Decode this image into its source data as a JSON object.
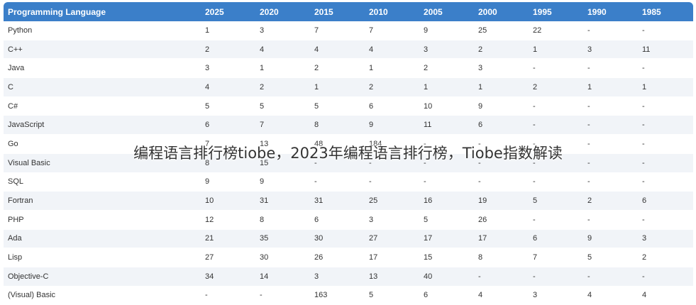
{
  "table": {
    "headers": [
      "Programming Language",
      "2025",
      "2020",
      "2015",
      "2010",
      "2005",
      "2000",
      "1995",
      "1990",
      "1985"
    ],
    "rows": [
      [
        "Python",
        "1",
        "3",
        "7",
        "7",
        "9",
        "25",
        "22",
        "-",
        "-"
      ],
      [
        "C++",
        "2",
        "4",
        "4",
        "4",
        "3",
        "2",
        "1",
        "3",
        "11"
      ],
      [
        "Java",
        "3",
        "1",
        "2",
        "1",
        "2",
        "3",
        "-",
        "-",
        "-"
      ],
      [
        "C",
        "4",
        "2",
        "1",
        "2",
        "1",
        "1",
        "2",
        "1",
        "1"
      ],
      [
        "C#",
        "5",
        "5",
        "5",
        "6",
        "10",
        "9",
        "-",
        "-",
        "-"
      ],
      [
        "JavaScript",
        "6",
        "7",
        "8",
        "9",
        "11",
        "6",
        "-",
        "-",
        "-"
      ],
      [
        "Go",
        "7",
        "13",
        "48",
        "184",
        "-",
        "-",
        "-",
        "-",
        "-"
      ],
      [
        "Visual Basic",
        "8",
        "15",
        "-",
        "-",
        "-",
        "-",
        "-",
        "-",
        "-"
      ],
      [
        "SQL",
        "9",
        "9",
        "-",
        "-",
        "-",
        "-",
        "-",
        "-",
        "-"
      ],
      [
        "Fortran",
        "10",
        "31",
        "31",
        "25",
        "16",
        "19",
        "5",
        "2",
        "6"
      ],
      [
        "PHP",
        "12",
        "8",
        "6",
        "3",
        "5",
        "26",
        "-",
        "-",
        "-"
      ],
      [
        "Ada",
        "21",
        "35",
        "30",
        "27",
        "17",
        "17",
        "6",
        "9",
        "3"
      ],
      [
        "Lisp",
        "27",
        "30",
        "26",
        "17",
        "15",
        "8",
        "7",
        "5",
        "2"
      ],
      [
        "Objective-C",
        "34",
        "14",
        "3",
        "13",
        "40",
        "-",
        "-",
        "-",
        "-"
      ],
      [
        "(Visual) Basic",
        "-",
        "-",
        "163",
        "5",
        "6",
        "4",
        "3",
        "4",
        "4"
      ]
    ]
  },
  "overlay_text": "编程语言排行榜tiobe，2023年编程语言排行榜，Tiobe指数解读"
}
